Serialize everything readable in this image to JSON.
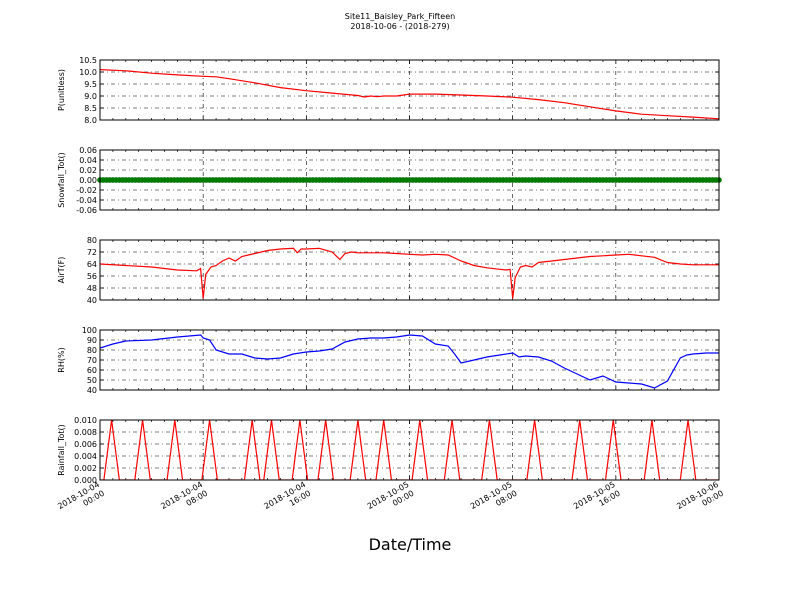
{
  "title": "Site11_Baisley_Park_Fifteen",
  "subtitle": "2018-10-06 - (2018-279)",
  "xlabel": "Date/Time",
  "x_ticks": [
    {
      "hours": 0,
      "line1": "2018-10-04",
      "line2": "00:00"
    },
    {
      "hours": 8,
      "line1": "2018-10-04",
      "line2": "08:00"
    },
    {
      "hours": 16,
      "line1": "2018-10-04",
      "line2": "16:00"
    },
    {
      "hours": 24,
      "line1": "2018-10-05",
      "line2": "00:00"
    },
    {
      "hours": 32,
      "line1": "2018-10-05",
      "line2": "08:00"
    },
    {
      "hours": 40,
      "line1": "2018-10-05",
      "line2": "16:00"
    },
    {
      "hours": 48,
      "line1": "2018-10-06",
      "line2": "00:00"
    }
  ],
  "chart_data": [
    {
      "type": "line",
      "ylabel": "P(unitless)",
      "ylim": [
        8.0,
        10.5
      ],
      "yticks": [
        "8.0",
        "8.5",
        "9.0",
        "9.5",
        "10.0",
        "10.5"
      ],
      "grid": true,
      "color": "#ff0000",
      "x_hours": [
        0,
        2,
        4,
        6,
        8,
        9,
        10,
        12,
        14,
        16,
        18,
        20,
        20.5,
        21,
        21.5,
        22,
        23,
        24,
        25,
        26,
        28,
        30,
        32,
        34,
        36,
        38,
        40,
        42,
        44,
        46,
        48
      ],
      "values": [
        10.1,
        10.05,
        9.95,
        9.88,
        9.82,
        9.8,
        9.72,
        9.55,
        9.35,
        9.22,
        9.12,
        9.02,
        8.96,
        9.0,
        8.97,
        9.0,
        9.0,
        9.08,
        9.08,
        9.08,
        9.04,
        9.0,
        8.95,
        8.85,
        8.72,
        8.55,
        8.38,
        8.24,
        8.18,
        8.12,
        8.05
      ]
    },
    {
      "type": "line",
      "ylabel": "Snowfall_Tot()",
      "ylim": [
        -0.06,
        0.06
      ],
      "yticks": [
        "-0.06",
        "-0.04",
        "-0.02",
        "0.00",
        "0.02",
        "0.04",
        "0.06"
      ],
      "grid": true,
      "color": "#008000",
      "marker": "circle",
      "x_hours": [
        0,
        48
      ],
      "values": [
        0,
        0
      ]
    },
    {
      "type": "line",
      "ylabel": "AirT(F)",
      "ylim": [
        40,
        80
      ],
      "yticks": [
        "40",
        "48",
        "56",
        "64",
        "72",
        "80"
      ],
      "grid": true,
      "color": "#ff0000",
      "x_hours": [
        0,
        2,
        4,
        6,
        7.5,
        7.8,
        8.0,
        8.2,
        8.6,
        9.0,
        9.5,
        10,
        10.5,
        11,
        11.5,
        12,
        13,
        14,
        15,
        15.3,
        15.6,
        16,
        17,
        18,
        18.6,
        19,
        19.5,
        20,
        21,
        22,
        23,
        24,
        25,
        26,
        27,
        28,
        29,
        30,
        31,
        31.5,
        31.8,
        32.0,
        32.2,
        32.6,
        33,
        33.5,
        34,
        35,
        36,
        37,
        38,
        39,
        40,
        41,
        42,
        43,
        44,
        45,
        46,
        48
      ],
      "values": [
        64,
        63,
        62,
        60,
        59.5,
        61,
        41,
        57,
        62,
        63,
        66,
        68,
        66,
        69,
        70,
        71,
        73,
        74,
        74.5,
        71.5,
        74,
        74,
        74.5,
        72,
        67,
        71,
        72,
        71.5,
        71.5,
        71.5,
        71,
        70.5,
        70,
        70.5,
        70,
        66,
        63,
        61.5,
        60.5,
        60,
        60.5,
        41,
        55,
        62,
        63,
        62,
        65,
        66,
        67,
        68,
        69,
        69.5,
        70,
        70.5,
        69.5,
        68.5,
        65,
        64,
        63.5,
        63.5
      ]
    },
    {
      "type": "line",
      "ylabel": "RH(%)",
      "ylim": [
        40,
        100
      ],
      "yticks": [
        "40",
        "50",
        "60",
        "70",
        "80",
        "90",
        "100"
      ],
      "grid": true,
      "color": "#0000ff",
      "x_hours": [
        0,
        1,
        2,
        4,
        6,
        7.8,
        8.0,
        8.5,
        9,
        10,
        11,
        12,
        13,
        14,
        15,
        16,
        17,
        18,
        19,
        20,
        21,
        22,
        23,
        24,
        25,
        26,
        27,
        27.5,
        28,
        29,
        30,
        31,
        32,
        32.5,
        33,
        34,
        35,
        36,
        37,
        38,
        39,
        40,
        41,
        42,
        43,
        44,
        45,
        45.5,
        46,
        47,
        48
      ],
      "values": [
        82,
        86,
        89,
        90,
        93,
        95,
        92,
        90,
        80,
        76,
        76,
        72,
        71,
        72,
        76,
        78,
        79,
        81,
        88,
        91,
        92,
        92,
        93,
        95,
        94,
        86,
        84,
        76,
        67,
        70,
        73,
        75,
        77,
        73,
        74,
        73,
        69,
        62,
        56,
        50,
        54,
        48,
        47,
        46,
        42,
        49,
        72,
        75,
        76,
        77,
        77
      ]
    },
    {
      "type": "line",
      "ylabel": "Rainfall_Tot()",
      "ylim": [
        0.0,
        0.01
      ],
      "yticks": [
        "0.000",
        "0.002",
        "0.004",
        "0.006",
        "0.008",
        "0.010"
      ],
      "grid": true,
      "color": "#ff0000",
      "spikes_hours": [
        0.9,
        3.3,
        5.8,
        8.5,
        11.8,
        13.3,
        15.5,
        17.5,
        20.0,
        22.0,
        24.8,
        27.3,
        30.2,
        33.7,
        37.2,
        39.8,
        42.8,
        45.6
      ],
      "spike_value": 0.01
    }
  ]
}
